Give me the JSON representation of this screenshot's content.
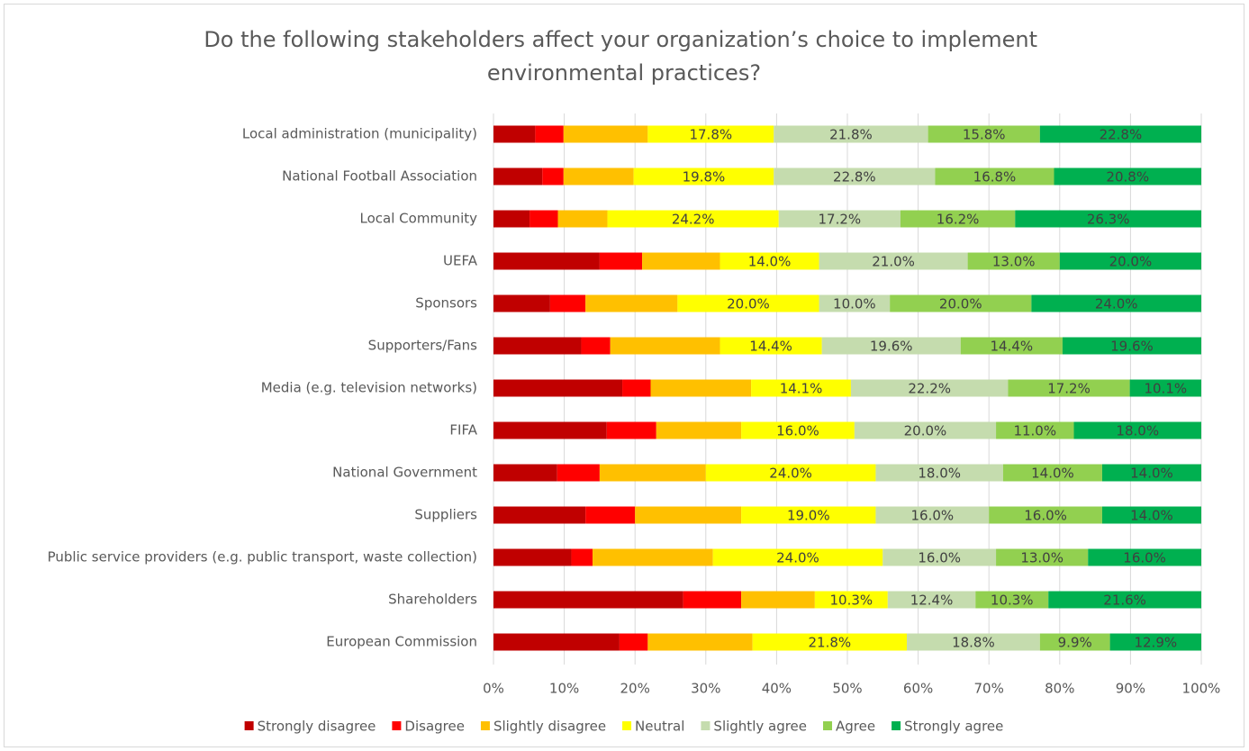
{
  "chart_data": {
    "type": "stacked_bar_horizontal",
    "title": "Do the following stakeholders affect your organization’s choice to implement environmental practices?",
    "categories": [
      "Local administration (municipality)",
      "National Football Association",
      "Local Community",
      "UEFA",
      "Sponsors",
      "Supporters/Fans",
      "Media (e.g. television networks)",
      "FIFA",
      "National Government",
      "Suppliers",
      "Public service providers (e.g. public transport, waste collection)",
      "Shareholders",
      "European Commission"
    ],
    "series": [
      {
        "name": "Strongly disagree",
        "color": "#c00000",
        "values": [
          5.9,
          6.9,
          5.1,
          15,
          8,
          12.4,
          18.2,
          16,
          9,
          13,
          11,
          26.8,
          17.8
        ]
      },
      {
        "name": "Disagree",
        "color": "#ff0000",
        "values": [
          4.0,
          3.0,
          4.0,
          6,
          5,
          4.1,
          4.0,
          7,
          6,
          7,
          3,
          8.2,
          4.0
        ]
      },
      {
        "name": "Slightly disagree",
        "color": "#ffc000",
        "values": [
          11.9,
          9.9,
          7.0,
          11,
          13,
          15.5,
          14.2,
          12,
          15,
          15,
          17,
          10.4,
          14.8
        ]
      },
      {
        "name": "Neutral",
        "color": "#ffff00",
        "values": [
          17.8,
          19.8,
          24.2,
          14.0,
          20.0,
          14.4,
          14.1,
          16.0,
          24.0,
          19.0,
          24.0,
          10.3,
          21.8
        ],
        "value_labels": [
          "17.8%",
          "19.8%",
          "24.2%",
          "14.0%",
          "20.0%",
          "14.4%",
          "14.1%",
          "16.0%",
          "24.0%",
          "19.0%",
          "24.0%",
          "10.3%",
          "21.8%"
        ]
      },
      {
        "name": "Slightly agree",
        "color": "#c5dcae",
        "values": [
          21.8,
          22.8,
          17.2,
          21.0,
          10.0,
          19.6,
          22.2,
          20.0,
          18.0,
          16.0,
          16.0,
          12.4,
          18.8
        ],
        "value_labels": [
          "21.8%",
          "22.8%",
          "17.2%",
          "21.0%",
          "10.0%",
          "19.6%",
          "22.2%",
          "20.0%",
          "18.0%",
          "16.0%",
          "16.0%",
          "12.4%",
          "18.8%"
        ]
      },
      {
        "name": "Agree",
        "color": "#92d050",
        "values": [
          15.8,
          16.8,
          16.2,
          13.0,
          20.0,
          14.4,
          17.2,
          11.0,
          14.0,
          16.0,
          13.0,
          10.3,
          9.9
        ],
        "value_labels": [
          "15.8%",
          "16.8%",
          "16.2%",
          "13.0%",
          "20.0%",
          "14.4%",
          "17.2%",
          "11.0%",
          "14.0%",
          "16.0%",
          "13.0%",
          "10.3%",
          "9.9%"
        ]
      },
      {
        "name": "Strongly agree",
        "color": "#00b050",
        "values": [
          22.8,
          20.8,
          26.3,
          20.0,
          24.0,
          19.6,
          10.1,
          18.0,
          14.0,
          14.0,
          16.0,
          21.6,
          12.9
        ],
        "value_labels": [
          "22.8%",
          "20.8%",
          "26.3%",
          "20.0%",
          "24.0%",
          "19.6%",
          "10.1%",
          "18.0%",
          "14.0%",
          "14.0%",
          "16.0%",
          "21.6%",
          "12.9%"
        ]
      }
    ],
    "xlim": [
      0,
      100
    ],
    "xticks": [
      {
        "value": 0,
        "label": "0%"
      },
      {
        "value": 10,
        "label": "10%"
      },
      {
        "value": 20,
        "label": "20%"
      },
      {
        "value": 30,
        "label": "30%"
      },
      {
        "value": 40,
        "label": "40%"
      },
      {
        "value": 50,
        "label": "50%"
      },
      {
        "value": 60,
        "label": "60%"
      },
      {
        "value": 70,
        "label": "70%"
      },
      {
        "value": 80,
        "label": "80%"
      },
      {
        "value": 90,
        "label": "90%"
      },
      {
        "value": 100,
        "label": "100%"
      }
    ],
    "grid": true,
    "legend": "bottom"
  }
}
